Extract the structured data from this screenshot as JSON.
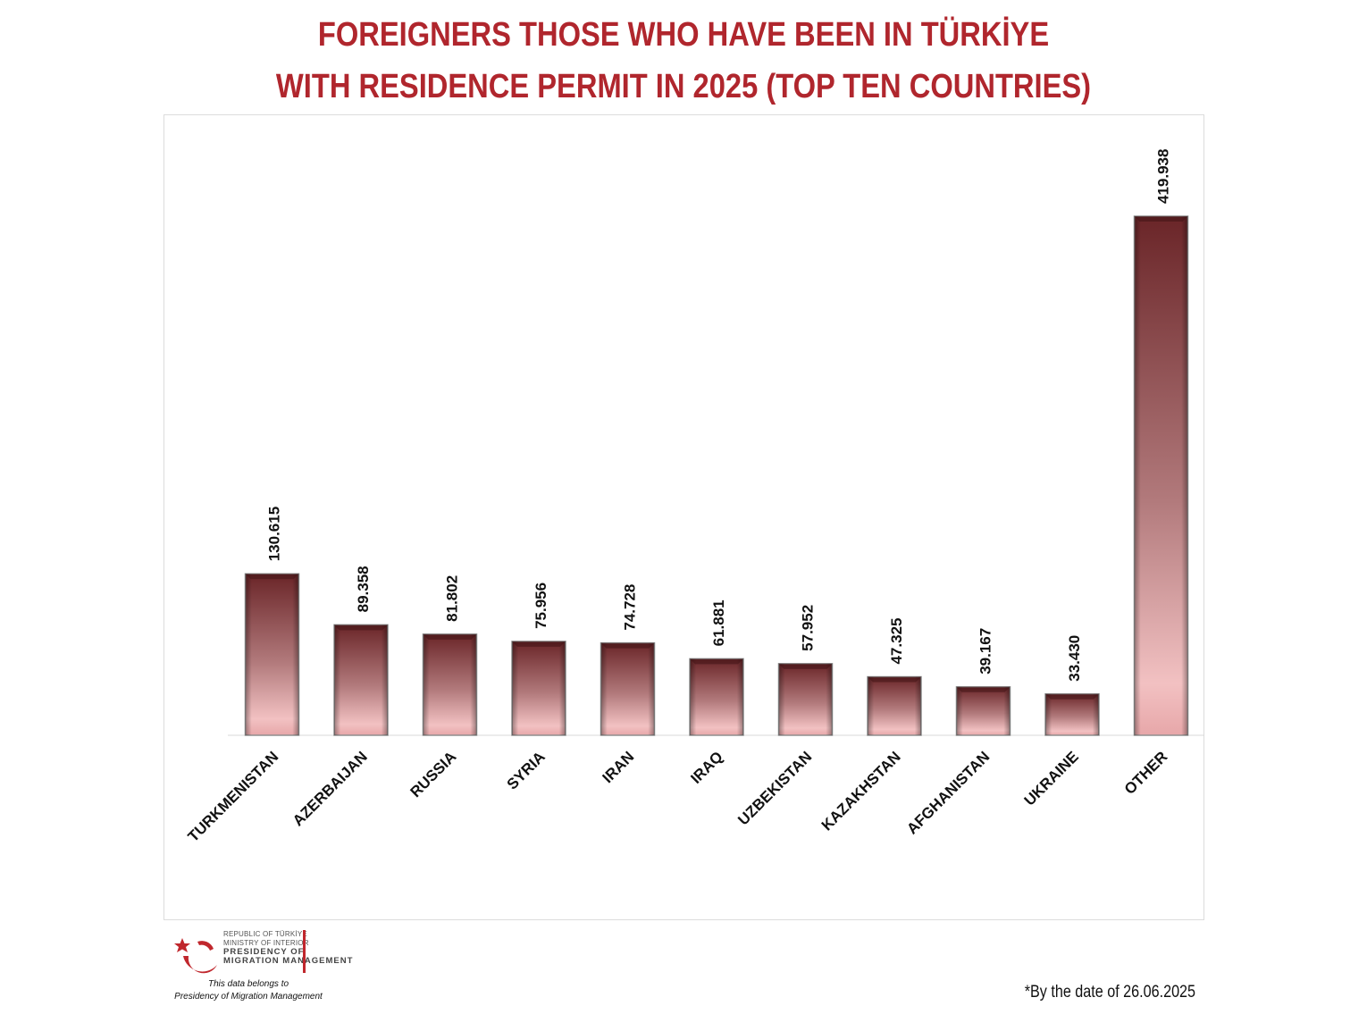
{
  "title": {
    "line1": "FOREIGNERS THOSE WHO HAVE BEEN IN TÜRKİYE",
    "line2": "WITH RESIDENCE PERMIT IN 2025 (TOP TEN COUNTRIES)"
  },
  "chart_data": {
    "type": "bar",
    "categories": [
      "TURKMENISTAN",
      "AZERBAIJAN",
      "RUSSIA",
      "SYRIA",
      "IRAN",
      "IRAQ",
      "UZBEKISTAN",
      "KAZAKHSTAN",
      "AFGHANISTAN",
      "UKRAINE",
      "OTHER"
    ],
    "values": [
      130615,
      89358,
      81802,
      75956,
      74728,
      61881,
      57952,
      47325,
      39167,
      33430,
      419938
    ],
    "data_labels": [
      "130.615",
      "89.358",
      "81.802",
      "75.956",
      "74.728",
      "61.881",
      "57.952",
      "47.325",
      "39.167",
      "33.430",
      "419.938"
    ],
    "title": "FOREIGNERS THOSE WHO HAVE BEEN IN TÜRKİYE WITH RESIDENCE PERMIT IN 2025 (TOP TEN COUNTRIES)",
    "xlabel": "",
    "ylabel": "",
    "ylim": [
      0,
      420000
    ],
    "grid": false,
    "legend": "none",
    "colors": {
      "bar_dark": "#6e2a2e",
      "bar_light": "#f2c0c0",
      "title": "#b0262d"
    }
  },
  "logo": {
    "line1": "REPUBLIC OF TÜRKİYE",
    "line2": "MINISTRY OF INTERIOR",
    "line3": "PRESIDENCY OF",
    "line4": "MIGRATION MANAGEMENT"
  },
  "attribution": {
    "line1": "This data belongs to",
    "line2": "Presidency of Migration Management"
  },
  "footnote": "*By the date of 26.06.2025"
}
